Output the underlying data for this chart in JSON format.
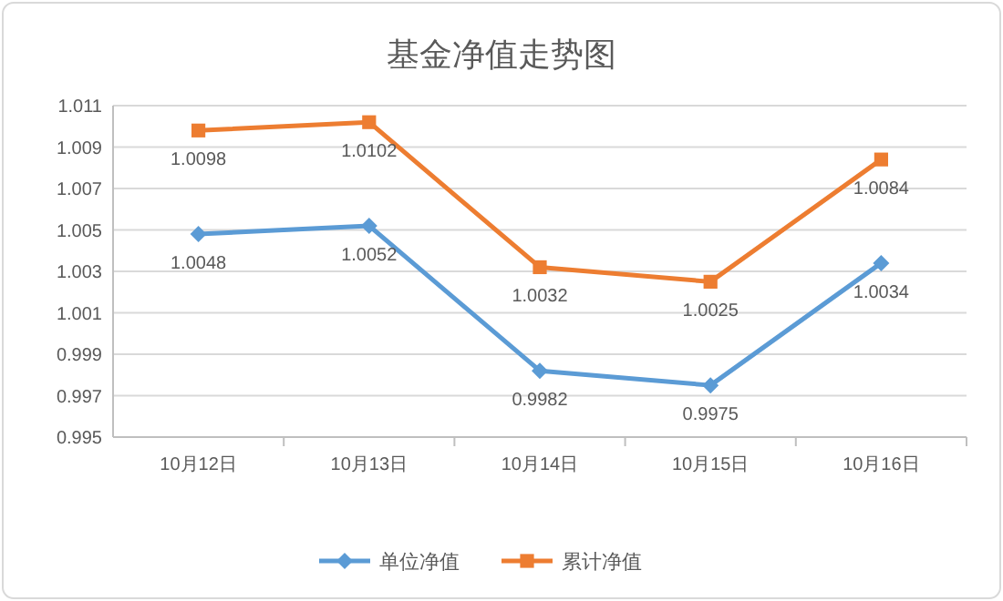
{
  "chart_data": {
    "type": "line",
    "title": "基金净值走势图",
    "categories": [
      "10月12日",
      "10月13日",
      "10月14日",
      "10月15日",
      "10月16日"
    ],
    "series": [
      {
        "name": "单位净值",
        "color": "#5b9bd5",
        "marker": "diamond",
        "values": [
          1.0048,
          1.0052,
          0.9982,
          0.9975,
          1.0034
        ]
      },
      {
        "name": "累计净值",
        "color": "#ed7d31",
        "marker": "square",
        "values": [
          1.0098,
          1.0102,
          1.0032,
          1.0025,
          1.0084
        ]
      }
    ],
    "ylim": [
      0.995,
      1.011
    ],
    "yticks": [
      {
        "value": 0.995,
        "label": "0.995"
      },
      {
        "value": 0.997,
        "label": "0.997"
      },
      {
        "value": 0.999,
        "label": "0.999"
      },
      {
        "value": 1.001,
        "label": "1.001"
      },
      {
        "value": 1.003,
        "label": "1.003"
      },
      {
        "value": 1.005,
        "label": "1.005"
      },
      {
        "value": 1.007,
        "label": "1.007"
      },
      {
        "value": 1.009,
        "label": "1.009"
      },
      {
        "value": 1.011,
        "label": "1.011"
      }
    ],
    "grid": "y",
    "legend": "bottom",
    "data_labels": true,
    "line_style": "solid"
  }
}
